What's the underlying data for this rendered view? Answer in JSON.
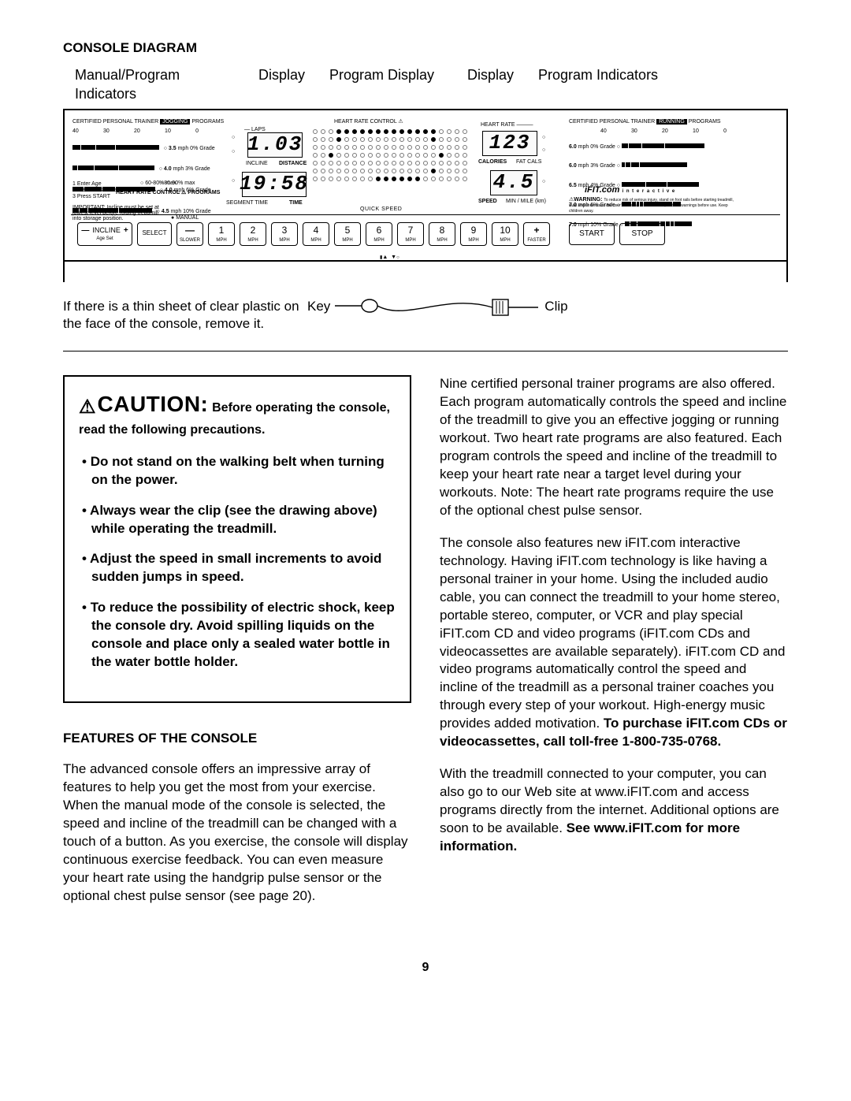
{
  "heading": "CONSOLE DIAGRAM",
  "labels": {
    "l1": "Manual/Program Indicators",
    "l2": "Display",
    "l3": "Program Display",
    "l4": "Display",
    "l5": "Program Indicators"
  },
  "console": {
    "left_title": "CERTIFIED PERSONAL TRAINER",
    "left_title_badge": "JOGGING",
    "left_title_tail": "PROGRAMS",
    "right_title": "CERTIFIED PERSONAL TRAINER",
    "right_title_badge": "RUNNING",
    "right_title_tail": "PROGRAMS",
    "jogging_levels": [
      {
        "mph": "3.5",
        "grade": "0% Grade"
      },
      {
        "mph": "4.0",
        "grade": "3% Grade"
      },
      {
        "mph": "4.0",
        "grade": "6% Grade"
      },
      {
        "mph": "4.5",
        "grade": "10% Grade"
      }
    ],
    "running_levels": [
      {
        "mph": "6.0",
        "grade": "0% Grade"
      },
      {
        "mph": "6.0",
        "grade": "3% Grade"
      },
      {
        "mph": "6.5",
        "grade": "4% Grade"
      },
      {
        "mph": "7.0",
        "grade": "6% Grade"
      },
      {
        "mph": "7.0",
        "grade": "10% Grade"
      }
    ],
    "left_ticks": [
      "40",
      "30",
      "20",
      "10",
      "0"
    ],
    "right_ticks": [
      "40",
      "30",
      "20",
      "10",
      "0"
    ],
    "hr_control_left": "HEART RATE CONTROL",
    "hr_control_left_tail": "PROGRAMS",
    "hr_left_opts": [
      "60-80% max",
      "80-90% max"
    ],
    "steps": [
      "1  Enter Age",
      "2  Wear Pulse Chest Strap",
      "3  Press START"
    ],
    "important": "IMPORTANT: Incline must be set at lowest level before folding treadmill into storage position.",
    "manual_label": "MANUAL",
    "laps": "LAPS",
    "incline": "INCLINE",
    "distance": "DISTANCE",
    "segment_time": "SEGMENT TIME",
    "time": "TIME",
    "hr_top": "HEART RATE CONTROL",
    "heart_rate": "HEART RATE",
    "calories": "CALORIES",
    "fat_cals": "FAT CALS",
    "speed": "SPEED",
    "minmile": "MIN / MILE (km)",
    "quick_speed": "QUICK SPEED",
    "display1": "1.03",
    "display2": "19:58",
    "display3": "123",
    "display4": "4.5",
    "ifit": "iFIT.com",
    "ifit_tail": "i n t e r a c t i v e",
    "warning": "WARNING:",
    "warning_text": "To reduce risk of serious injury, stand on foot rails before starting treadmill, read and understand the user's manual, all instructions, and the warnings before use. Keep children away.",
    "incline_btn": "INCLINE",
    "age_set": "Age Set",
    "select": "SELECT",
    "slower": "SLOWER",
    "faster": "FASTER",
    "start": "START",
    "stop": "STOP",
    "speeds": [
      "1",
      "2",
      "3",
      "4",
      "5",
      "6",
      "7",
      "8",
      "9",
      "10"
    ],
    "mph": "MPH",
    "tri_up": "▲",
    "tri_down": "▼"
  },
  "below": {
    "left": "If there is a thin sheet of clear plastic on the face of the console, remove it.",
    "key": "Key",
    "clip": "Clip"
  },
  "caution": {
    "icon": "⚠",
    "word": "CAUTION:",
    "tail": "Before operating the console, read the following precautions.",
    "items": [
      "Do not stand on the walking belt when turning on the power.",
      "Always wear the clip (see the drawing above) while operating the treadmill.",
      "Adjust the speed in small increments to avoid sudden jumps in speed.",
      "To reduce the possibility of electric shock, keep the console dry. Avoid spilling liquids on the console and place only a sealed water bottle in the water bottle holder."
    ]
  },
  "features": {
    "heading": "FEATURES OF THE CONSOLE",
    "p1": "The advanced console offers an impressive array of features to help you get the most from your exercise. When the manual mode of the console is selected, the speed and incline of the treadmill can be changed with a touch of a button. As you exercise, the console will display continuous exercise feedback. You can even measure your heart rate using the handgrip pulse sensor or the optional chest pulse sensor (see page 20).",
    "p2": "Nine certified personal trainer programs are also offered. Each program automatically controls the speed and incline of the treadmill to give you an effective jogging or running workout. Two heart rate programs are also featured. Each program controls the speed and incline of the treadmill to keep your heart rate near a target level during your workouts. Note: The heart rate programs require the use of the optional chest pulse sensor.",
    "p3a": "The console also features new iFIT.com interactive technology. Having iFIT.com technology is like having a personal trainer in your home. Using the included audio cable, you can connect the treadmill to your home stereo, portable stereo, computer, or VCR and play special iFIT.com CD and video programs (iFIT.com CDs and videocassettes are available separately). iFIT.com CD and video programs automatically control the speed and incline of the treadmill as a personal trainer coaches you through every step of your workout. High-energy music provides added motivation. ",
    "p3b": "To purchase iFIT.com CDs or videocassettes, call toll-free 1-800-735-0768.",
    "p4a": "With the treadmill connected to your computer, you can also go to our Web site at www.iFIT.com and access programs directly from the internet. Additional options are soon to be available. ",
    "p4b": "See www.iFIT.com for more information."
  },
  "page": "9",
  "dot_pattern": [
    "00011111111111110000",
    "00010000000000010000",
    "00000000000000000000",
    "00100000000000001000",
    "00000000000000000000",
    "00000000000000010000",
    "00000000111111000000"
  ]
}
